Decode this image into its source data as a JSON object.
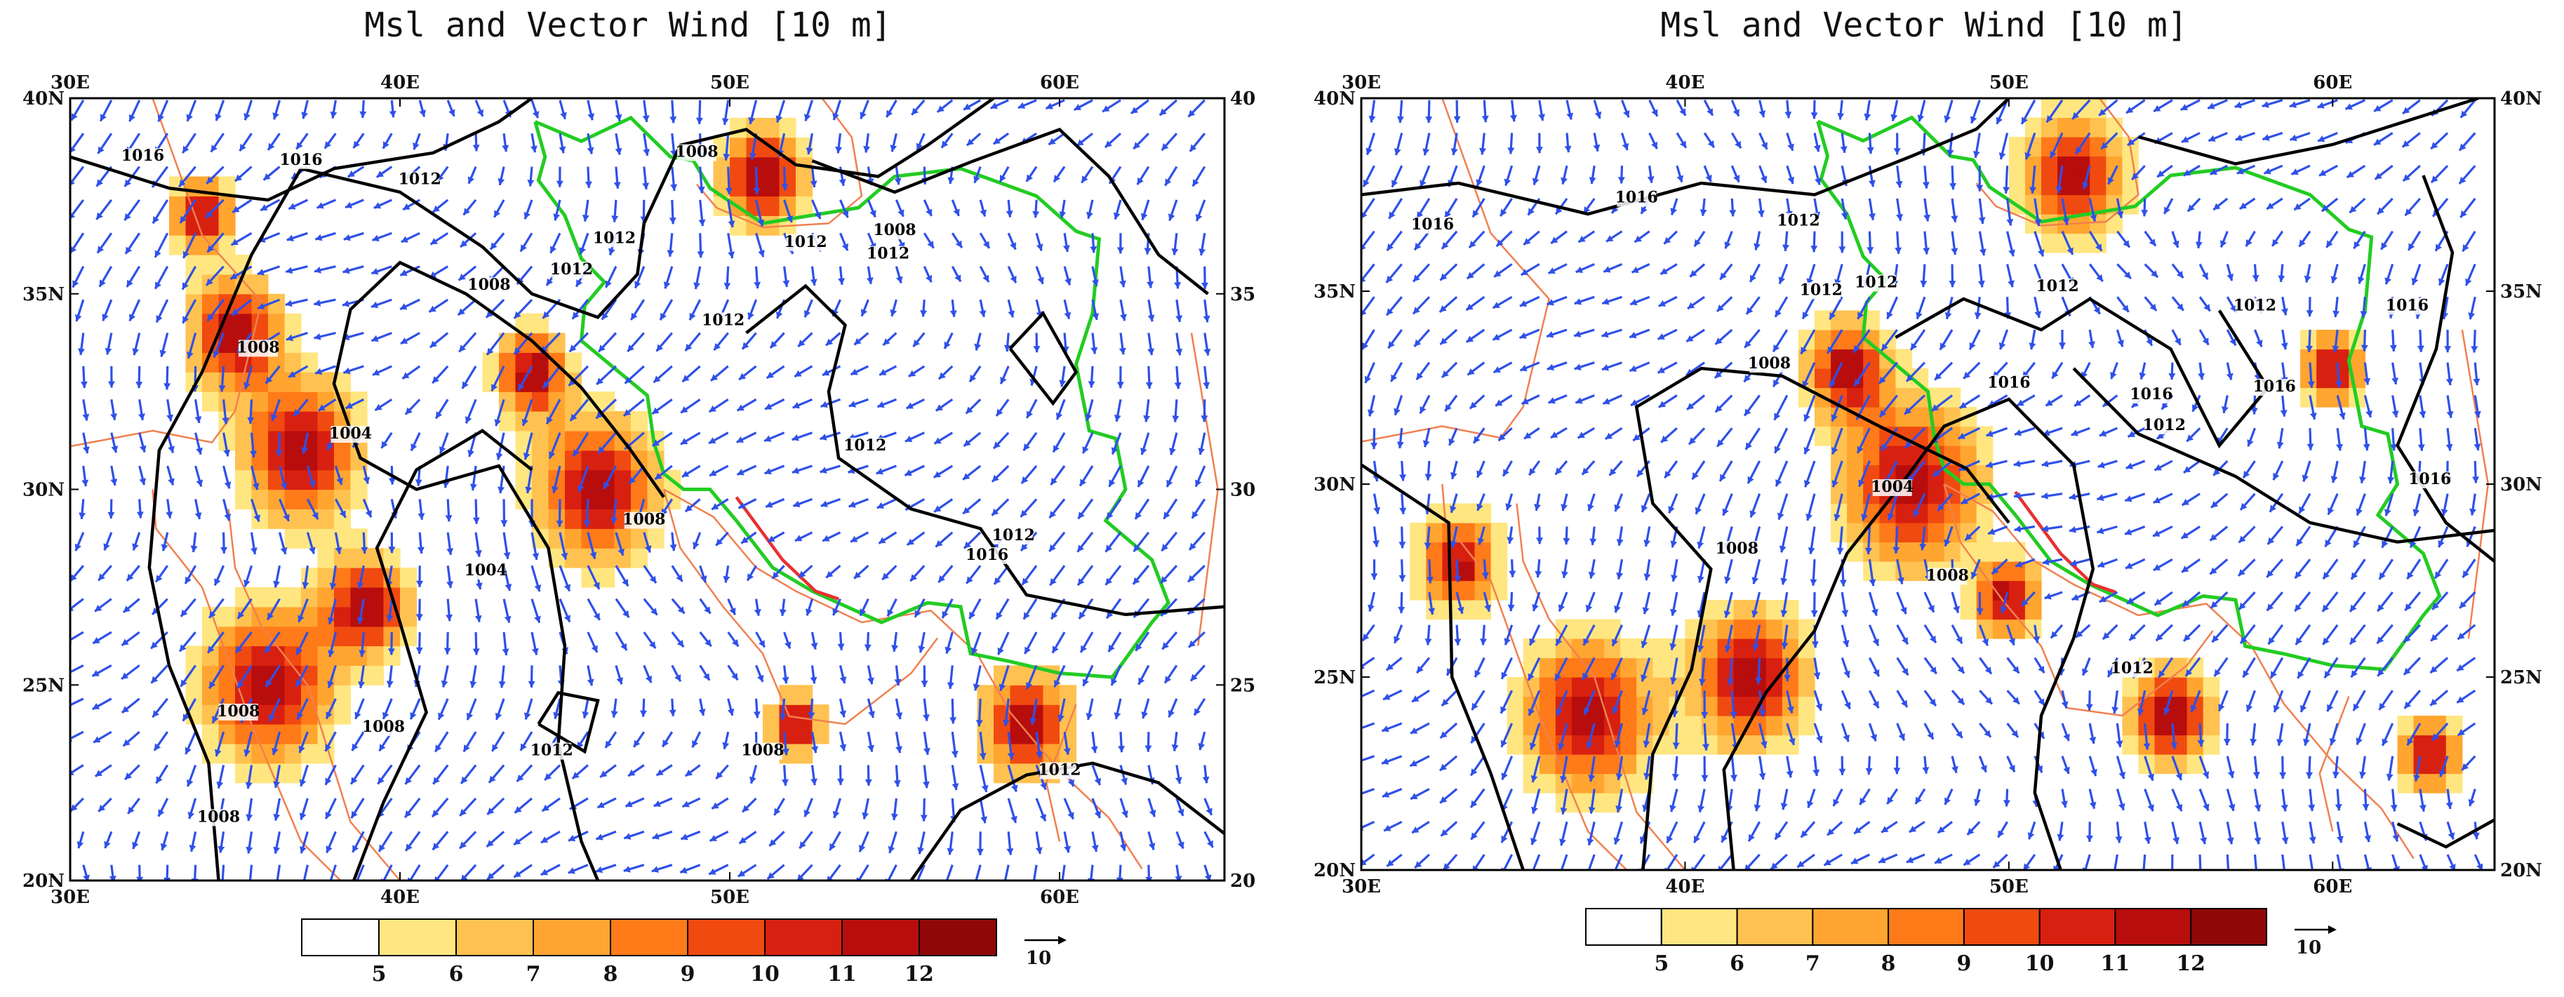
{
  "panels": [
    {
      "title": "Msl and Vector Wind [10 m]",
      "x_ticks": [
        "30E",
        "40E",
        "50E",
        "60E"
      ],
      "y_ticks": [
        "40N",
        "35N",
        "30N",
        "25N",
        "20N"
      ],
      "isobar_labels": [
        "1016",
        "1016",
        "1012",
        "1008",
        "1012",
        "1008",
        "1012",
        "1012",
        "1012",
        "1008",
        "1012",
        "1004",
        "1008",
        "1004",
        "1012",
        "1012",
        "1016",
        "1008",
        "1008",
        "1008",
        "1008",
        "1012",
        "1008",
        "1012"
      ],
      "hotspots": [
        [
          37,
          31,
          1.8
        ],
        [
          35,
          34,
          1.4
        ],
        [
          36,
          25,
          2.0
        ],
        [
          46,
          30,
          1.9
        ],
        [
          44,
          33,
          1.1
        ],
        [
          51,
          38,
          1.3
        ],
        [
          34,
          37,
          0.9
        ],
        [
          39,
          27,
          1.3
        ],
        [
          59,
          24,
          1.4
        ],
        [
          52,
          24,
          0.8
        ]
      ]
    },
    {
      "title": "Msl and Vector Wind [10 m]",
      "x_ticks": [
        "30E",
        "40E",
        "50E",
        "60E"
      ],
      "y_ticks": [
        "40N",
        "35N",
        "30N",
        "25N",
        "20N"
      ],
      "isobar_labels": [
        "1016",
        "1016",
        "1012",
        "1012",
        "1012",
        "1012",
        "1008",
        "1016",
        "1008",
        "1004",
        "1016",
        "1012",
        "1016",
        "1012",
        "1016",
        "1008",
        "1012",
        "1016"
      ],
      "hotspots": [
        [
          47,
          30,
          2.2
        ],
        [
          37,
          24,
          2.0
        ],
        [
          42,
          25,
          1.8
        ],
        [
          52,
          38,
          1.6
        ],
        [
          45,
          33,
          1.2
        ],
        [
          60,
          33,
          0.9
        ],
        [
          33,
          28,
          1.2
        ],
        [
          55,
          24,
          1.3
        ],
        [
          63,
          23,
          0.9
        ],
        [
          50,
          27,
          1.0
        ]
      ]
    }
  ],
  "colorbar": {
    "labels": [
      "5",
      "6",
      "7",
      "8",
      "9",
      "10",
      "11",
      "12"
    ],
    "colors": [
      "#ffffff",
      "#ffe680",
      "#ffc250",
      "#ffa530",
      "#ff7a18",
      "#f04a10",
      "#d82010",
      "#b80d0d",
      "#900808"
    ],
    "vector_ref": "10"
  },
  "colors": {
    "wind_vector": "#2f50e8",
    "coastline": "#f08050",
    "iran_border": "#22cc22",
    "coast_segment": "#e83030",
    "isobar": "#000000"
  }
}
